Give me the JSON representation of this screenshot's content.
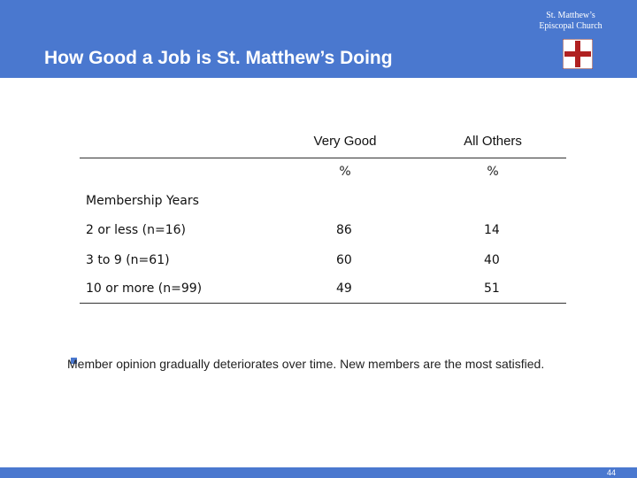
{
  "header": {
    "title": "How Good a Job is St. Matthew’s Doing",
    "logo_text": [
      "St. Matthew’s",
      "Episcopal Church"
    ]
  },
  "table": {
    "columns": [
      "Very Good",
      "All Others"
    ],
    "units": [
      "%",
      "%"
    ],
    "section": "Membership Years",
    "rows": [
      [
        "2 or less (n=16)",
        86,
        14
      ],
      [
        "3 to 9 (n=61)",
        60,
        40
      ],
      [
        "10 or more (n=99)",
        49,
        51
      ]
    ]
  },
  "bullet": "Member opinion gradually deteriorates over time.  New members are the most satisfied.",
  "footer": {
    "page": 44
  }
}
